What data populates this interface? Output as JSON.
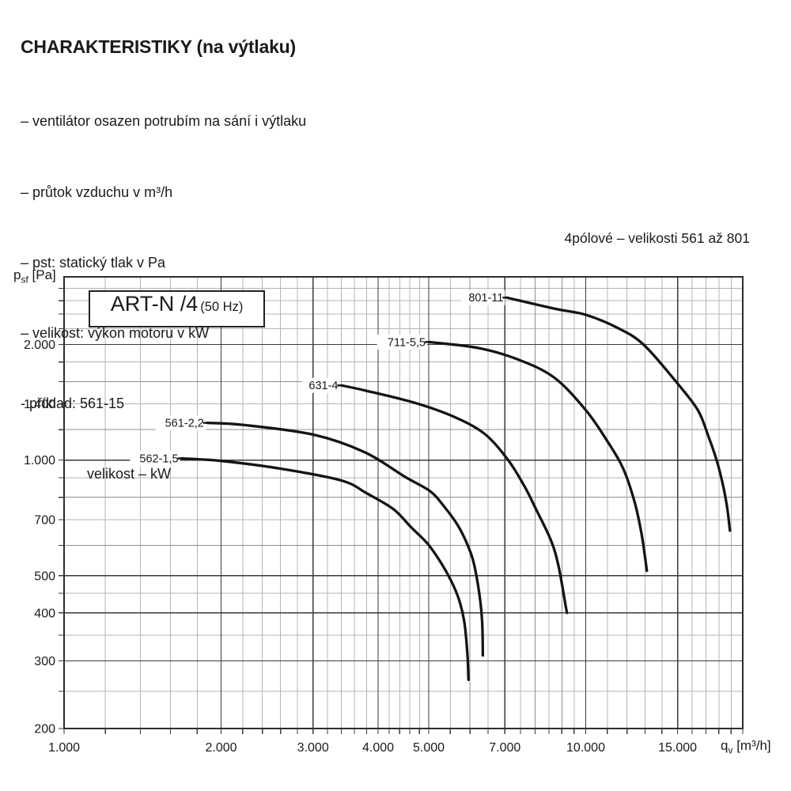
{
  "page": {
    "background": "#ffffff",
    "text_color": "#1a1a1a"
  },
  "header": {
    "title": "CHARAKTERISTIKY (na výtlaku)",
    "lines": [
      "– ventilátor osazen potrubím na sání i výtlaku",
      "– průtok vzduchu v m³/h",
      "– pst: statický tlak v Pa",
      "– velikost: výkon motoru v kW",
      "- příklad: 561-15"
    ],
    "example_sub": "velikost – kW"
  },
  "note": "4pólové – velikosti 561 až 801",
  "chart_data": {
    "type": "line",
    "title_box": {
      "main": "ART-N /4",
      "sub": "(50 Hz)"
    },
    "x_axis": {
      "label_main": "q",
      "label_sub": "v",
      "label_unit": " [m³/h]",
      "scale": "log",
      "min": 1000,
      "max": 20000,
      "gridlines_major": [
        1000,
        2000,
        3000,
        4000,
        5000,
        7000,
        10000,
        15000,
        20000
      ],
      "gridlines_medium": [
        6000,
        8000,
        9000
      ],
      "gridlines_minor": [
        1200,
        1400,
        1600,
        1800,
        2200,
        2400,
        2600,
        2800,
        3200,
        3400,
        3600,
        3800,
        4200,
        4400,
        4600,
        4800,
        5500,
        6500,
        7500,
        8500,
        9500,
        11000,
        12000,
        13000,
        14000,
        16000,
        17000,
        18000,
        19000
      ],
      "tick_labels": [
        {
          "value": 1000,
          "text": "1.000"
        },
        {
          "value": 2000,
          "text": "2.000"
        },
        {
          "value": 3000,
          "text": "3.000"
        },
        {
          "value": 4000,
          "text": "4.000"
        },
        {
          "value": 5000,
          "text": "5.000"
        },
        {
          "value": 7000,
          "text": "7.000"
        },
        {
          "value": 10000,
          "text": "10.000"
        },
        {
          "value": 15000,
          "text": "15.000"
        }
      ]
    },
    "y_axis": {
      "label_main": "p",
      "label_sub": "sf",
      "label_unit": " [Pa]",
      "scale": "log",
      "min": 200,
      "max": 3000,
      "gridlines_major": [
        200,
        300,
        400,
        500,
        1000,
        2000
      ],
      "gridlines_medium": [
        600,
        800,
        1200,
        1600
      ],
      "gridlines_minor": [
        250,
        350,
        450,
        700,
        900,
        1400,
        1800,
        2200,
        2400,
        2600,
        2800
      ],
      "tick_labels": [
        {
          "value": 200,
          "text": "200"
        },
        {
          "value": 300,
          "text": "300"
        },
        {
          "value": 400,
          "text": "400"
        },
        {
          "value": 500,
          "text": "500"
        },
        {
          "value": 700,
          "text": "700"
        },
        {
          "value": 1000,
          "text": "1.000"
        },
        {
          "value": 1400,
          "text": "1.400"
        },
        {
          "value": 2000,
          "text": "2.000"
        }
      ]
    },
    "series": [
      {
        "name": "562-1,5",
        "points": [
          [
            1680,
            1010
          ],
          [
            2000,
            995
          ],
          [
            2600,
            950
          ],
          [
            3400,
            885
          ],
          [
            3800,
            820
          ],
          [
            4280,
            745
          ],
          [
            4620,
            670
          ],
          [
            4980,
            605
          ],
          [
            5280,
            540
          ],
          [
            5520,
            485
          ],
          [
            5710,
            435
          ],
          [
            5850,
            380
          ],
          [
            5930,
            315
          ],
          [
            5960,
            268
          ]
        ]
      },
      {
        "name": "561-2,2",
        "points": [
          [
            1880,
            1250
          ],
          [
            2200,
            1235
          ],
          [
            3000,
            1165
          ],
          [
            3760,
            1050
          ],
          [
            4500,
            905
          ],
          [
            5030,
            830
          ],
          [
            5360,
            755
          ],
          [
            5690,
            675
          ],
          [
            5940,
            600
          ],
          [
            6100,
            540
          ],
          [
            6250,
            450
          ],
          [
            6330,
            380
          ],
          [
            6350,
            310
          ]
        ]
      },
      {
        "name": "631-4",
        "points": [
          [
            3400,
            1565
          ],
          [
            3800,
            1515
          ],
          [
            4700,
            1410
          ],
          [
            5600,
            1295
          ],
          [
            6400,
            1170
          ],
          [
            7100,
            1000
          ],
          [
            7630,
            855
          ],
          [
            8030,
            745
          ],
          [
            8590,
            615
          ],
          [
            8880,
            525
          ],
          [
            9160,
            415
          ],
          [
            9210,
            400
          ]
        ]
      },
      {
        "name": "711-5,5",
        "points": [
          [
            5000,
            2030
          ],
          [
            6200,
            1960
          ],
          [
            7400,
            1830
          ],
          [
            8700,
            1640
          ],
          [
            10000,
            1350
          ],
          [
            11000,
            1120
          ],
          [
            11800,
            950
          ],
          [
            12400,
            780
          ],
          [
            12800,
            640
          ],
          [
            13100,
            515
          ]
        ]
      },
      {
        "name": "801-11",
        "points": [
          [
            7050,
            2650
          ],
          [
            8700,
            2480
          ],
          [
            10000,
            2390
          ],
          [
            11500,
            2210
          ],
          [
            12900,
            2000
          ],
          [
            14900,
            1600
          ],
          [
            16400,
            1350
          ],
          [
            17200,
            1150
          ],
          [
            17900,
            980
          ],
          [
            18400,
            840
          ],
          [
            18700,
            740
          ],
          [
            18900,
            655
          ]
        ]
      }
    ],
    "colors": {
      "curve": "#141414",
      "grid_major": "#3a3a3a",
      "grid_medium": "#8f8f8f",
      "grid_minor": "#b5b5b5",
      "frame": "#2e2e2e",
      "text": "#1a1a1a"
    }
  }
}
